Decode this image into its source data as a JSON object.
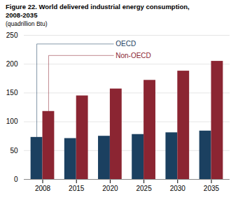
{
  "chart_data": {
    "type": "bar",
    "title": "Figure 22. World delivered industrial energy consumption,\n2008-2035",
    "subtitle": "(quadrillion Btu)",
    "categories": [
      "2008",
      "2015",
      "2020",
      "2025",
      "2030",
      "2035"
    ],
    "series": [
      {
        "name": "OECD",
        "color": "#1b4060",
        "values": [
          73,
          71,
          75,
          78,
          81,
          84
        ]
      },
      {
        "name": "Non-OECD",
        "color": "#8b2532",
        "values": [
          118,
          145,
          157,
          172,
          188,
          205
        ]
      }
    ],
    "ylim": [
      0,
      250
    ],
    "yticks": [
      0,
      50,
      100,
      150,
      200,
      250
    ],
    "grid": true
  }
}
